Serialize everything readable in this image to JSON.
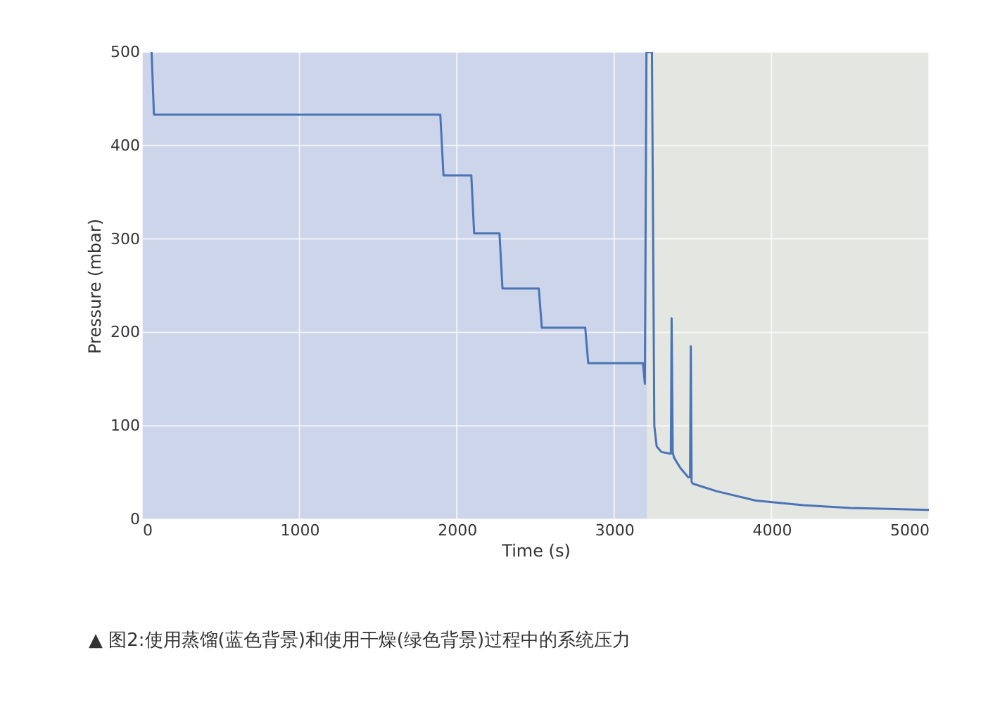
{
  "chart_data": {
    "type": "line",
    "xlabel": "Time (s)",
    "ylabel": "Pressure (mbar)",
    "xlim": [
      0,
      5000
    ],
    "xticks": [
      0,
      1000,
      2000,
      3000,
      4000,
      5000
    ],
    "ylim": [
      0,
      500
    ],
    "yticks": [
      0,
      100,
      200,
      300,
      400,
      500
    ],
    "grid": true,
    "series": [
      {
        "color": "#4a74b5",
        "x": [
          60,
          75,
          1000,
          1895,
          1915,
          2092,
          2110,
          2271,
          2290,
          2521,
          2540,
          2816,
          2835,
          3183,
          3195,
          3205,
          3225,
          3240,
          3255,
          3270,
          3300,
          3360,
          3365,
          3372,
          3380,
          3420,
          3470,
          3482,
          3487,
          3492,
          3500,
          3650,
          3900,
          4200,
          4500,
          5000
        ],
        "values": [
          500,
          433,
          433,
          433,
          368,
          368,
          306,
          306,
          247,
          247,
          205,
          205,
          167,
          167,
          145,
          500,
          500,
          500,
          100,
          78,
          72,
          70,
          215,
          72,
          66,
          55,
          45,
          45,
          185,
          40,
          38,
          30,
          20,
          15,
          12,
          10
        ]
      }
    ],
    "bands": [
      {
        "axis": "x",
        "from": 0,
        "to": 3210,
        "color": "#cdd5ea"
      },
      {
        "axis": "x",
        "from": 3210,
        "to": 5000,
        "color": "#e3e6e1"
      }
    ],
    "annotations": [
      "▲ 图2:使用蒸馏(蓝色背景)和使用干燥(绿色背景)过程中的系统压力"
    ]
  }
}
